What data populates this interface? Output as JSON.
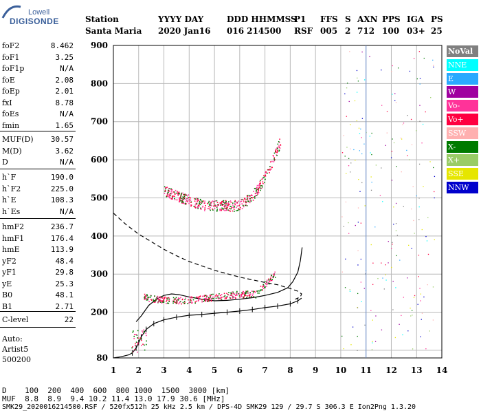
{
  "logo": {
    "line1": "Lowell",
    "line2": "DIGISONDE"
  },
  "header": {
    "row1": [
      "Station",
      "YYYY DAY",
      "DDD HHMMSS",
      "P1",
      "FFS",
      "S",
      "AXN",
      "PPS",
      "IGA",
      "PS"
    ],
    "row2": [
      "Santa Maria",
      "2020 Jan16",
      "016 214500",
      "RSF",
      "005",
      "2",
      "712",
      "100",
      "03+",
      "25"
    ]
  },
  "params": {
    "group1": [
      {
        "k": "foF2",
        "v": "8.462"
      },
      {
        "k": "foF1",
        "v": "3.25"
      },
      {
        "k": "foF1p",
        "v": "N/A"
      },
      {
        "k": "foE",
        "v": "2.08"
      },
      {
        "k": "foEp",
        "v": "2.01"
      },
      {
        "k": "fxI",
        "v": "8.78"
      },
      {
        "k": "foEs",
        "v": "N/A"
      },
      {
        "k": "fmin",
        "v": "1.65"
      }
    ],
    "group2": [
      {
        "k": "MUF(D)",
        "v": "30.57"
      },
      {
        "k": "M(D)",
        "v": "3.62"
      },
      {
        "k": "D",
        "v": "N/A"
      }
    ],
    "group3": [
      {
        "k": "h`F",
        "v": "190.0"
      },
      {
        "k": "h`F2",
        "v": "225.0"
      },
      {
        "k": "h`E",
        "v": "108.3"
      },
      {
        "k": "h`Es",
        "v": "N/A"
      }
    ],
    "group4": [
      {
        "k": "hmF2",
        "v": "236.7"
      },
      {
        "k": "hmF1",
        "v": "176.4"
      },
      {
        "k": "hmE",
        "v": "113.9"
      },
      {
        "k": "yF2",
        "v": "48.4"
      },
      {
        "k": "yF1",
        "v": "29.8"
      },
      {
        "k": "yE",
        "v": "25.3"
      },
      {
        "k": "B0",
        "v": "48.1"
      },
      {
        "k": "B1",
        "v": "2.71"
      }
    ],
    "group5": [
      {
        "k": "C-level",
        "v": "22"
      }
    ],
    "auto": [
      "Auto:",
      "Artist5",
      "500200"
    ]
  },
  "legend": [
    {
      "label": "NoVal",
      "color": "#808080"
    },
    {
      "label": "NNE",
      "color": "#00ffff"
    },
    {
      "label": "E",
      "color": "#2aa9ff"
    },
    {
      "label": "W",
      "color": "#a000a0"
    },
    {
      "label": "Vo-",
      "color": "#ff3399"
    },
    {
      "label": "Vo+",
      "color": "#ff0040"
    },
    {
      "label": "SSW",
      "color": "#ffb0b0"
    },
    {
      "label": "X-",
      "color": "#007a00"
    },
    {
      "label": "X+",
      "color": "#99cc66"
    },
    {
      "label": "SSE",
      "color": "#e6e600"
    },
    {
      "label": "NNW",
      "color": "#0000cc"
    }
  ],
  "footer": {
    "line1": "D    100  200  400  600  800 1000  1500  3000 [km]",
    "line2": "MUF  8.8  8.9  9.4 10.2 11.4 13.0 17.9 30.6 [MHz]",
    "line3": "SMK29_2020016214500.RSF / 520fx512h 25 kHz 2.5 km / DPS-4D SMK29 129 / 29.7 S 306.3 E Ion2Png 1.3.20"
  },
  "chart_data": {
    "type": "scatter",
    "xlim": [
      1,
      14
    ],
    "ylim": [
      80,
      900
    ],
    "xticks": [
      1,
      2,
      3,
      4,
      5,
      6,
      7,
      8,
      9,
      10,
      11,
      12,
      13,
      14
    ],
    "yticks": [
      80,
      200,
      300,
      400,
      500,
      600,
      700,
      800,
      900
    ],
    "ygrid": [
      80,
      100,
      200,
      300,
      400,
      500,
      600,
      700,
      800,
      900
    ],
    "grid": true,
    "series": [
      {
        "style": "solid",
        "x": [
          1.0,
          1.3,
          1.6,
          1.75,
          1.9,
          2.0,
          2.1,
          2.3,
          2.6,
          3.0,
          3.5,
          4.0,
          4.5,
          5.0,
          5.5,
          6.0,
          6.5,
          7.0,
          7.5,
          8.0,
          8.3,
          8.45
        ],
        "y": [
          80,
          83,
          88,
          93,
          106,
          120,
          135,
          155,
          170,
          180,
          187,
          192,
          194,
          197,
          200,
          203,
          207,
          212,
          216,
          222,
          230,
          237
        ]
      },
      {
        "style": "solid",
        "x": [
          1.9,
          2.1,
          2.4,
          2.7,
          3.0,
          3.3,
          3.6,
          4.0,
          4.5,
          5.0,
          5.5,
          6.0,
          6.5,
          7.0,
          7.5,
          7.9,
          8.1,
          8.3,
          8.4,
          8.47
        ],
        "y": [
          175,
          190,
          218,
          234,
          244,
          248,
          246,
          240,
          234,
          230,
          231,
          234,
          238,
          244,
          252,
          264,
          280,
          305,
          335,
          370
        ]
      },
      {
        "style": "dashed",
        "x": [
          1.0,
          1.5,
          2.0,
          2.5,
          3.0,
          3.5,
          4.0,
          5.0,
          6.0,
          7.0,
          7.5,
          8.0,
          8.3,
          8.45,
          8.4,
          8.2
        ],
        "y": [
          460,
          430,
          405,
          385,
          365,
          348,
          333,
          310,
          292,
          278,
          272,
          262,
          255,
          248,
          240,
          234
        ]
      }
    ]
  }
}
